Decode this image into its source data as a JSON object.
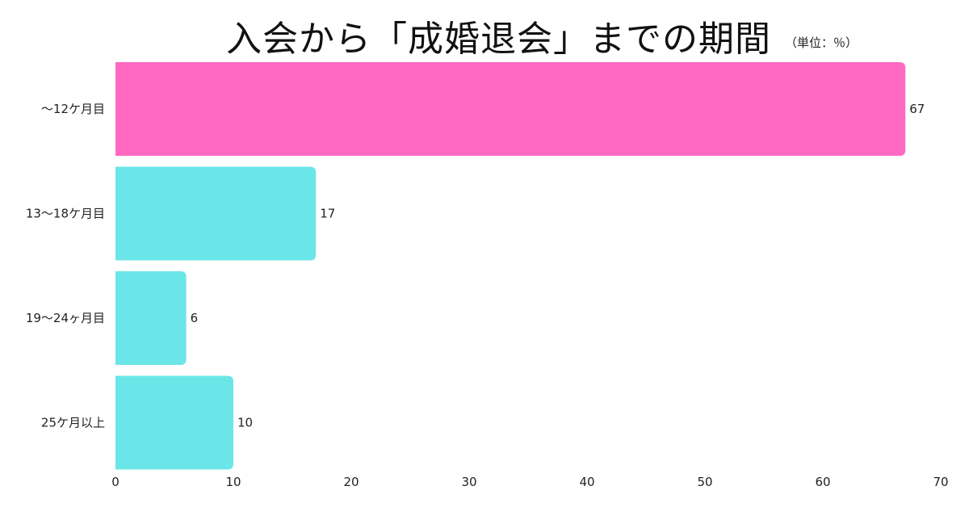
{
  "chart_data": {
    "type": "bar",
    "orientation": "horizontal",
    "title": "入会から「成婚退会」までの期間",
    "unit_note": "（単位：％）",
    "categories": [
      "〜12ケ月目",
      "13〜18ケ月目",
      "19〜24ヶ月目",
      "25ケ月以上"
    ],
    "values": [
      67,
      17,
      6,
      10
    ],
    "colors": [
      "#ff69c2",
      "#6be6e8",
      "#6be6e8",
      "#6be6e8"
    ],
    "xlim": [
      0,
      70
    ],
    "xticks": [
      0,
      10,
      20,
      30,
      40,
      50,
      60,
      70
    ],
    "grid": false,
    "xlabel": "",
    "ylabel": ""
  }
}
